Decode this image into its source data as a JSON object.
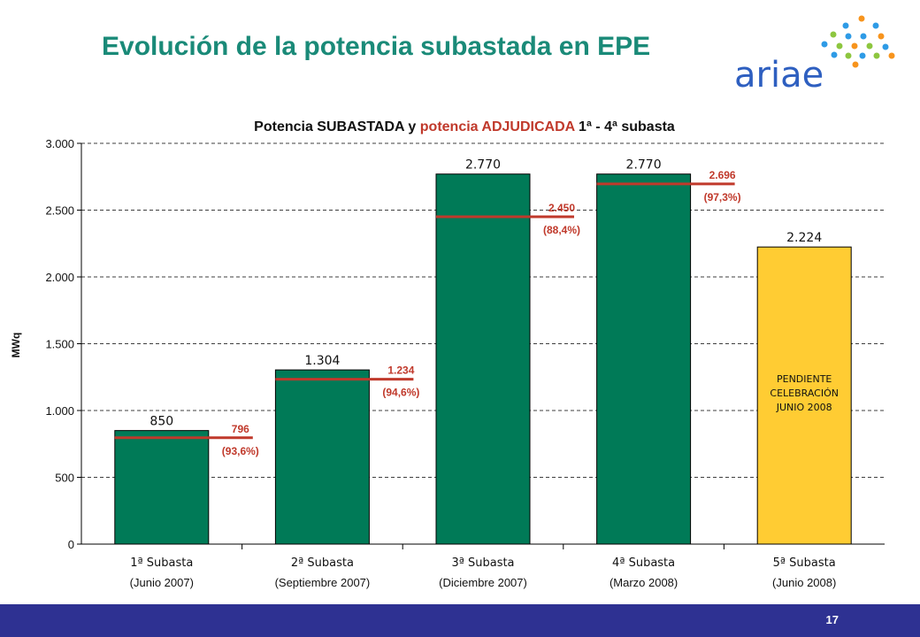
{
  "slide": {
    "title": "Evolución de la potencia subastada en EPE",
    "page_number": "17",
    "logo_text": "ariae"
  },
  "colors": {
    "title": "#1a8a78",
    "bar_done": "#007a57",
    "bar_pending": "#ffcc33",
    "awarded_line": "#c0392b",
    "awarded_text": "#c0392b",
    "footer": "#2e3192"
  },
  "chart_data": {
    "type": "bar",
    "title_parts": [
      {
        "text": "Potencia SUBASTADA y ",
        "color": "#111111"
      },
      {
        "text": "potencia ADJUDICADA",
        "color": "#c0392b"
      },
      {
        "text": " 1ª -  4ª subasta",
        "color": "#111111"
      }
    ],
    "ylabel": "MWq",
    "ylim": [
      0,
      3000
    ],
    "yticks": [
      0,
      500,
      1000,
      1500,
      2000,
      2500,
      3000
    ],
    "ytick_labels": [
      "0",
      "500",
      "1.000",
      "1.500",
      "2.000",
      "2.500",
      "3.000"
    ],
    "grid": true,
    "categories": [
      {
        "line1": "1ª Subasta",
        "line2": "(Junio 2007)"
      },
      {
        "line1": "2ª Subasta",
        "line2": "(Septiembre 2007)"
      },
      {
        "line1": "3ª Subasta",
        "line2": "(Diciembre 2007)"
      },
      {
        "line1": "4ª Subasta",
        "line2": "(Marzo 2008)"
      },
      {
        "line1": "5ª Subasta",
        "line2": "(Junio 2008)"
      }
    ],
    "series": [
      {
        "name": "Potencia SUBASTADA",
        "values": [
          850,
          1304,
          2770,
          2770,
          2224
        ],
        "labels": [
          "850",
          "1.304",
          "2.770",
          "2.770",
          "2.224"
        ],
        "pending": [
          false,
          false,
          false,
          false,
          true
        ]
      },
      {
        "name": "potencia ADJUDICADA",
        "values": [
          796,
          1234,
          2450,
          2696,
          null
        ],
        "labels": [
          "796",
          "1.234",
          "2.450",
          "2.696",
          null
        ],
        "percent_labels": [
          "(93,6%)",
          "(94,6%)",
          "(88,4%)",
          "(97,3%)",
          null
        ]
      }
    ],
    "pending_annotation": [
      "PENDIENTE",
      "CELEBRACIÓN",
      "JUNIO 2008"
    ]
  }
}
